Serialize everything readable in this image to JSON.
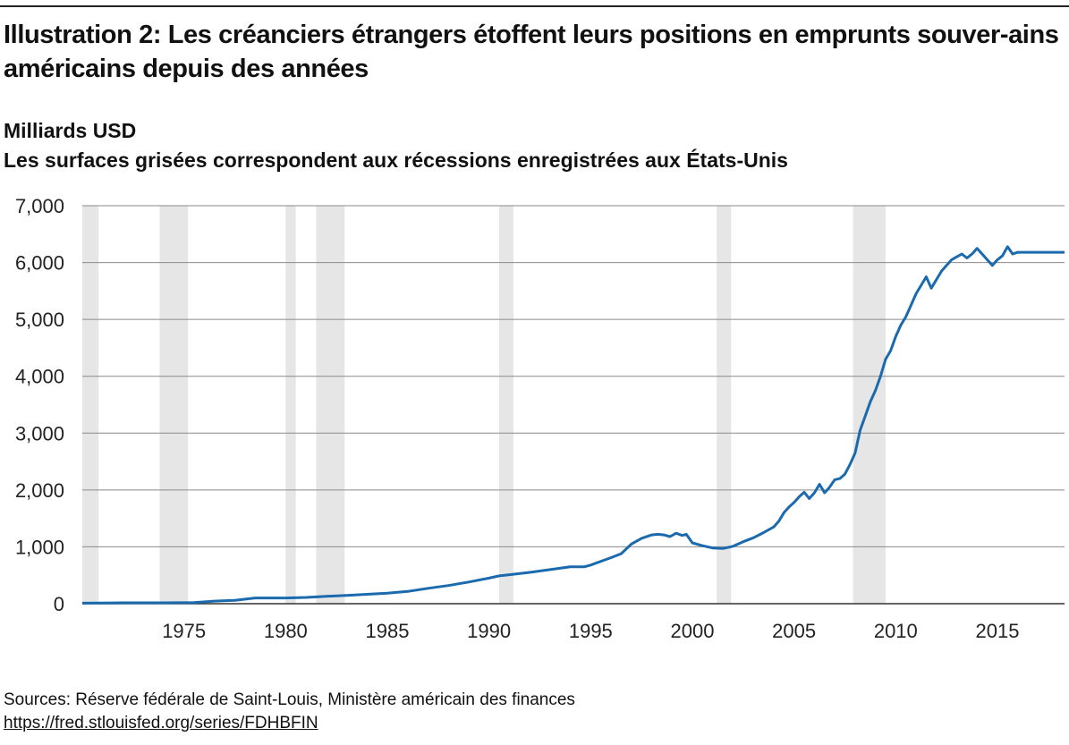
{
  "chart_data": {
    "type": "line",
    "title": "Illustration 2: Les créanciers étrangers étoffent leurs positions en emprunts souver-ains américains depuis des années",
    "subtitle": "Milliards USD",
    "note": "Les surfaces grisées correspondent aux récessions enregistrées aux États-Unis",
    "xlim": [
      1970,
      2018.3
    ],
    "ylim": [
      0,
      7000
    ],
    "yticks": [
      0,
      1000,
      2000,
      3000,
      4000,
      5000,
      6000,
      7000
    ],
    "ytick_labels": [
      "0",
      "1,000",
      "2,000",
      "3,000",
      "4,000",
      "5,000",
      "6,000",
      "7,000"
    ],
    "xticks": [
      1975,
      1980,
      1985,
      1990,
      1995,
      2000,
      2005,
      2010,
      2015
    ],
    "xtick_labels": [
      "1975",
      "1980",
      "1985",
      "1990",
      "1995",
      "2000",
      "2005",
      "2010",
      "2015"
    ],
    "grid": "horizontal",
    "line_color": "#1a6aad",
    "recession_color": "#e6e6e6",
    "recessions": [
      [
        1970.0,
        1970.8
      ],
      [
        1973.8,
        1975.2
      ],
      [
        1980.0,
        1980.5
      ],
      [
        1981.5,
        1982.9
      ],
      [
        1990.5,
        1991.2
      ],
      [
        2001.2,
        2001.9
      ],
      [
        2007.9,
        2009.5
      ]
    ],
    "series": [
      {
        "x": [
          1970.0,
          1972.0,
          1974.0,
          1975.5,
          1976.5,
          1977.5,
          1978.5,
          1980.0,
          1981.0,
          1982.0,
          1983.0,
          1984.0,
          1985.0,
          1986.0,
          1987.0,
          1988.0,
          1989.0,
          1990.0,
          1990.5,
          1991.0,
          1992.0,
          1993.0,
          1994.0,
          1994.7,
          1995.0,
          1996.0,
          1996.5,
          1997.0,
          1997.5,
          1998.0,
          1998.3,
          1998.6,
          1998.9,
          1999.2,
          1999.5,
          1999.7,
          2000.0,
          2000.5,
          2001.0,
          2001.5,
          2002.0,
          2002.5,
          2003.0,
          2003.5,
          2004.0,
          2004.25,
          2004.5,
          2004.75,
          2005.0,
          2005.25,
          2005.5,
          2005.75,
          2006.0,
          2006.25,
          2006.5,
          2006.75,
          2007.0,
          2007.25,
          2007.5,
          2007.75,
          2008.0,
          2008.25,
          2008.5,
          2008.75,
          2009.0,
          2009.25,
          2009.5,
          2009.75,
          2010.0,
          2010.25,
          2010.5,
          2010.75,
          2011.0,
          2011.25,
          2011.5,
          2011.75,
          2012.0,
          2012.25,
          2012.5,
          2012.75,
          2013.0,
          2013.25,
          2013.5,
          2013.75,
          2014.0,
          2014.25,
          2014.5,
          2014.75,
          2015.0,
          2015.25,
          2015.5,
          2015.75,
          2016.0,
          2016.25,
          2016.5,
          2016.75,
          2017.0,
          2017.25,
          2017.5,
          2017.75,
          2018.0,
          2018.3
        ],
        "y": [
          10,
          15,
          15,
          20,
          45,
          60,
          100,
          100,
          110,
          130,
          145,
          165,
          185,
          215,
          270,
          320,
          380,
          450,
          490,
          510,
          550,
          600,
          650,
          650,
          680,
          810,
          880,
          1050,
          1150,
          1210,
          1220,
          1210,
          1180,
          1240,
          1200,
          1220,
          1070,
          1020,
          980,
          970,
          1010,
          1090,
          1160,
          1250,
          1350,
          1450,
          1600,
          1700,
          1780,
          1880,
          1960,
          1850,
          1950,
          2100,
          1950,
          2050,
          2180,
          2200,
          2280,
          2450,
          2650,
          3050,
          3300,
          3550,
          3750,
          4000,
          4300,
          4450,
          4700,
          4900,
          5050,
          5250,
          5450,
          5600,
          5750,
          5550,
          5700,
          5850,
          5950,
          6050,
          6100,
          6150,
          6080,
          6150,
          6250,
          6150,
          6050,
          5950,
          6050,
          6120,
          6280,
          6150,
          6180,
          6180,
          6180,
          6180,
          6180,
          6180,
          6180,
          6180,
          6180,
          6180
        ]
      }
    ]
  },
  "footer": {
    "source": "Sources: Réserve fédérale de Saint-Louis, Ministère américain des finances",
    "link": "https://fred.stlouisfed.org/series/FDHBFIN"
  }
}
